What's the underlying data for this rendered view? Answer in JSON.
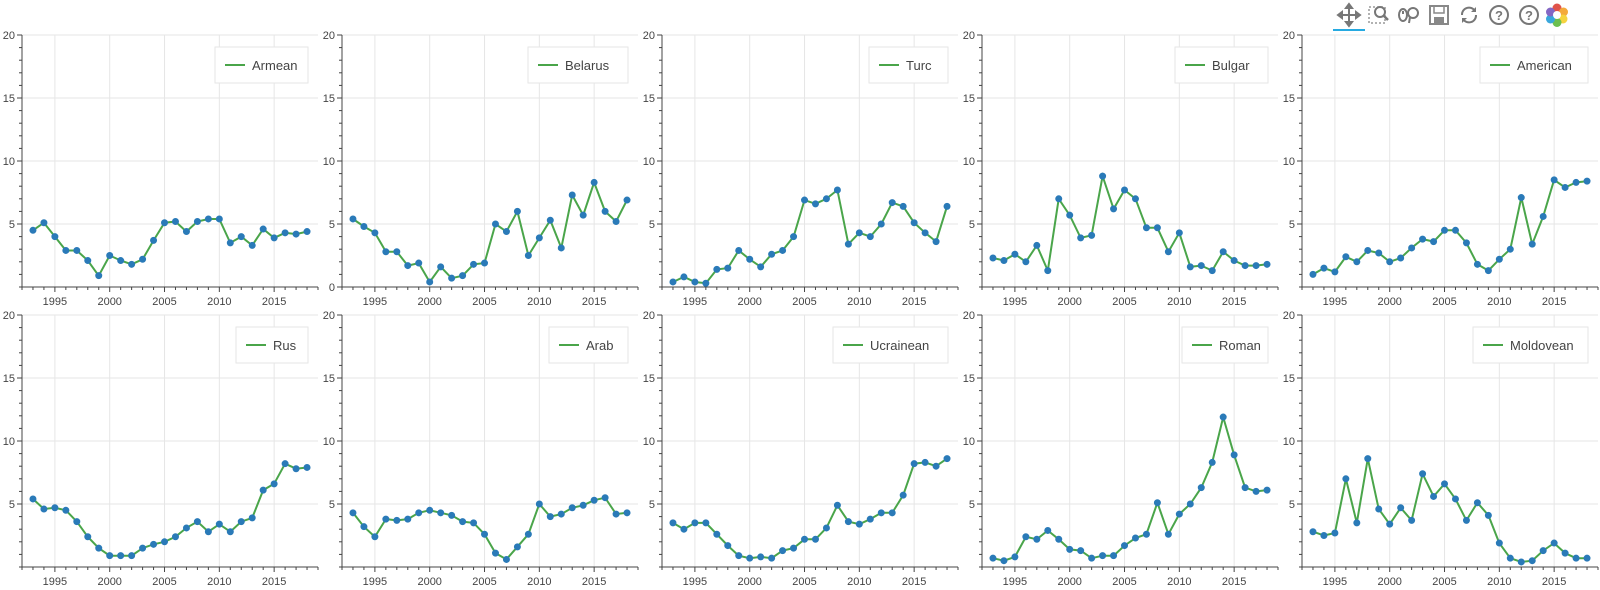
{
  "toolbar": {
    "tools": [
      {
        "name": "pan-tool-icon",
        "interactable": true,
        "active": true
      },
      {
        "name": "box-zoom-tool-icon",
        "interactable": true,
        "active": false
      },
      {
        "name": "wheel-zoom-tool-icon",
        "interactable": true,
        "active": false
      },
      {
        "name": "save-tool-icon",
        "interactable": true,
        "active": false
      },
      {
        "name": "reset-tool-icon",
        "interactable": true,
        "active": false
      },
      {
        "name": "hover-help-icon",
        "interactable": true,
        "active": false
      },
      {
        "name": "help-icon",
        "interactable": true,
        "active": false
      },
      {
        "name": "bokeh-logo-icon",
        "interactable": false,
        "active": false
      }
    ]
  },
  "colors": {
    "line": "#4aa54a",
    "marker": "#2a7ab8",
    "grid": "#e6e6e6",
    "axis": "#444444",
    "tick_text": "#444444",
    "legend_border": "#e6e6e6"
  },
  "chart_data": [
    {
      "type": "line",
      "legend": "Armean",
      "xlim": [
        1992,
        2019
      ],
      "ylim": [
        0,
        20
      ],
      "xticks": [
        1995,
        2000,
        2005,
        2010,
        2015
      ],
      "yticks": [
        5,
        10,
        15,
        20
      ],
      "grid": true,
      "legend_position": "top-right",
      "x": [
        1993,
        1994,
        1995,
        1996,
        1997,
        1998,
        1999,
        2000,
        2001,
        2002,
        2003,
        2004,
        2005,
        2006,
        2007,
        2008,
        2009,
        2010,
        2011,
        2012,
        2013,
        2014,
        2015,
        2016,
        2017,
        2018
      ],
      "y": [
        4.5,
        5.1,
        4.0,
        2.9,
        2.9,
        2.1,
        0.9,
        2.5,
        2.1,
        1.8,
        2.2,
        3.7,
        5.1,
        5.2,
        4.4,
        5.2,
        5.4,
        5.4,
        3.5,
        4.0,
        3.3,
        4.6,
        3.9,
        4.3,
        4.2,
        4.4
      ]
    },
    {
      "type": "line",
      "legend": "Belarus",
      "xlim": [
        1992,
        2019
      ],
      "ylim": [
        0,
        20
      ],
      "xticks": [
        1995,
        2000,
        2005,
        2010,
        2015
      ],
      "yticks": [
        0,
        5,
        10,
        15,
        20
      ],
      "grid": true,
      "legend_position": "top-right",
      "x": [
        1993,
        1994,
        1995,
        1996,
        1997,
        1998,
        1999,
        2000,
        2001,
        2002,
        2003,
        2004,
        2005,
        2006,
        2007,
        2008,
        2009,
        2010,
        2011,
        2012,
        2013,
        2014,
        2015,
        2016,
        2017,
        2018
      ],
      "y": [
        5.4,
        4.8,
        4.3,
        2.8,
        2.8,
        1.7,
        1.9,
        0.4,
        1.6,
        0.7,
        0.9,
        1.8,
        1.9,
        5.0,
        4.4,
        6.0,
        2.5,
        3.9,
        5.3,
        3.1,
        7.3,
        5.7,
        8.3,
        6.0,
        5.2,
        6.9
      ]
    },
    {
      "type": "line",
      "legend": "Turc",
      "xlim": [
        1992,
        2019
      ],
      "ylim": [
        0,
        20
      ],
      "xticks": [
        1995,
        2000,
        2005,
        2010,
        2015
      ],
      "yticks": [
        5,
        10,
        15,
        20
      ],
      "grid": true,
      "legend_position": "top-right",
      "x": [
        1993,
        1994,
        1995,
        1996,
        1997,
        1998,
        1999,
        2000,
        2001,
        2002,
        2003,
        2004,
        2005,
        2006,
        2007,
        2008,
        2009,
        2010,
        2011,
        2012,
        2013,
        2014,
        2015,
        2016,
        2017,
        2018
      ],
      "y": [
        0.4,
        0.8,
        0.4,
        0.3,
        1.4,
        1.5,
        2.9,
        2.2,
        1.6,
        2.6,
        2.9,
        4.0,
        6.9,
        6.6,
        7.0,
        7.7,
        3.4,
        4.3,
        4.0,
        5.0,
        6.7,
        6.4,
        5.1,
        4.3,
        3.6,
        6.4
      ]
    },
    {
      "type": "line",
      "legend": "Bulgar",
      "xlim": [
        1992,
        2019
      ],
      "ylim": [
        0,
        20
      ],
      "xticks": [
        1995,
        2000,
        2005,
        2010,
        2015
      ],
      "yticks": [
        5,
        10,
        15,
        20
      ],
      "grid": true,
      "legend_position": "top-right",
      "x": [
        1993,
        1994,
        1995,
        1996,
        1997,
        1998,
        1999,
        2000,
        2001,
        2002,
        2003,
        2004,
        2005,
        2006,
        2007,
        2008,
        2009,
        2010,
        2011,
        2012,
        2013,
        2014,
        2015,
        2016,
        2017,
        2018
      ],
      "y": [
        2.3,
        2.1,
        2.6,
        2.0,
        3.3,
        1.3,
        7.0,
        5.7,
        3.9,
        4.1,
        8.8,
        6.2,
        7.7,
        7.0,
        4.7,
        4.7,
        2.8,
        4.3,
        1.6,
        1.7,
        1.3,
        2.8,
        2.1,
        1.7,
        1.7,
        1.8
      ]
    },
    {
      "type": "line",
      "legend": "American",
      "xlim": [
        1992,
        2019
      ],
      "ylim": [
        0,
        20
      ],
      "xticks": [
        1995,
        2000,
        2005,
        2010,
        2015
      ],
      "yticks": [
        5,
        10,
        15,
        20
      ],
      "grid": true,
      "legend_position": "top-right",
      "x": [
        1993,
        1994,
        1995,
        1996,
        1997,
        1998,
        1999,
        2000,
        2001,
        2002,
        2003,
        2004,
        2005,
        2006,
        2007,
        2008,
        2009,
        2010,
        2011,
        2012,
        2013,
        2014,
        2015,
        2016,
        2017,
        2018
      ],
      "y": [
        1.0,
        1.5,
        1.2,
        2.4,
        2.0,
        2.9,
        2.7,
        2.0,
        2.3,
        3.1,
        3.8,
        3.6,
        4.5,
        4.5,
        3.5,
        1.8,
        1.3,
        2.2,
        3.0,
        7.1,
        3.4,
        5.6,
        8.5,
        7.9,
        8.3,
        8.4
      ]
    },
    {
      "type": "line",
      "legend": "Rus",
      "xlim": [
        1992,
        2019
      ],
      "ylim": [
        0,
        20
      ],
      "xticks": [
        1995,
        2000,
        2005,
        2010,
        2015
      ],
      "yticks": [
        5,
        10,
        15,
        20
      ],
      "grid": true,
      "legend_position": "top-right",
      "x": [
        1993,
        1994,
        1995,
        1996,
        1997,
        1998,
        1999,
        2000,
        2001,
        2002,
        2003,
        2004,
        2005,
        2006,
        2007,
        2008,
        2009,
        2010,
        2011,
        2012,
        2013,
        2014,
        2015,
        2016,
        2017,
        2018
      ],
      "y": [
        5.4,
        4.6,
        4.7,
        4.5,
        3.6,
        2.4,
        1.5,
        0.9,
        0.9,
        0.9,
        1.5,
        1.8,
        2.0,
        2.4,
        3.1,
        3.6,
        2.8,
        3.4,
        2.8,
        3.6,
        3.9,
        6.1,
        6.6,
        8.2,
        7.8,
        7.9
      ]
    },
    {
      "type": "line",
      "legend": "Arab",
      "xlim": [
        1992,
        2019
      ],
      "ylim": [
        0,
        20
      ],
      "xticks": [
        1995,
        2000,
        2005,
        2010,
        2015
      ],
      "yticks": [
        5,
        10,
        15,
        20
      ],
      "grid": true,
      "legend_position": "top-right",
      "x": [
        1993,
        1994,
        1995,
        1996,
        1997,
        1998,
        1999,
        2000,
        2001,
        2002,
        2003,
        2004,
        2005,
        2006,
        2007,
        2008,
        2009,
        2010,
        2011,
        2012,
        2013,
        2014,
        2015,
        2016,
        2017,
        2018
      ],
      "y": [
        4.3,
        3.2,
        2.4,
        3.8,
        3.7,
        3.8,
        4.3,
        4.5,
        4.3,
        4.1,
        3.6,
        3.5,
        2.6,
        1.1,
        0.6,
        1.6,
        2.6,
        5.0,
        4.0,
        4.2,
        4.7,
        4.9,
        5.3,
        5.5,
        4.2,
        4.3
      ]
    },
    {
      "type": "line",
      "legend": "Ucrainean",
      "xlim": [
        1992,
        2019
      ],
      "ylim": [
        0,
        20
      ],
      "xticks": [
        1995,
        2000,
        2005,
        2010,
        2015
      ],
      "yticks": [
        5,
        10,
        15,
        20
      ],
      "grid": true,
      "legend_position": "top-right",
      "x": [
        1993,
        1994,
        1995,
        1996,
        1997,
        1998,
        1999,
        2000,
        2001,
        2002,
        2003,
        2004,
        2005,
        2006,
        2007,
        2008,
        2009,
        2010,
        2011,
        2012,
        2013,
        2014,
        2015,
        2016,
        2017,
        2018
      ],
      "y": [
        3.5,
        3.0,
        3.5,
        3.5,
        2.6,
        1.7,
        0.9,
        0.7,
        0.8,
        0.7,
        1.3,
        1.5,
        2.2,
        2.2,
        3.1,
        4.9,
        3.6,
        3.4,
        3.8,
        4.3,
        4.3,
        5.7,
        8.2,
        8.3,
        8.0,
        8.6
      ]
    },
    {
      "type": "line",
      "legend": "Roman",
      "xlim": [
        1992,
        2019
      ],
      "ylim": [
        0,
        20
      ],
      "xticks": [
        1995,
        2000,
        2005,
        2010,
        2015
      ],
      "yticks": [
        5,
        10,
        15,
        20
      ],
      "grid": true,
      "legend_position": "top-right",
      "x": [
        1993,
        1994,
        1995,
        1996,
        1997,
        1998,
        1999,
        2000,
        2001,
        2002,
        2003,
        2004,
        2005,
        2006,
        2007,
        2008,
        2009,
        2010,
        2011,
        2012,
        2013,
        2014,
        2015,
        2016,
        2017,
        2018
      ],
      "y": [
        0.7,
        0.5,
        0.8,
        2.4,
        2.2,
        2.9,
        2.2,
        1.4,
        1.3,
        0.7,
        0.9,
        0.9,
        1.7,
        2.3,
        2.6,
        5.1,
        2.6,
        4.2,
        5.0,
        6.3,
        8.3,
        11.9,
        8.9,
        6.3,
        6.0,
        6.1
      ]
    },
    {
      "type": "line",
      "legend": "Moldovean",
      "xlim": [
        1992,
        2019
      ],
      "ylim": [
        0,
        20
      ],
      "xticks": [
        1995,
        2000,
        2005,
        2010,
        2015
      ],
      "yticks": [
        5,
        10,
        15,
        20
      ],
      "grid": true,
      "legend_position": "top-right",
      "x": [
        1993,
        1994,
        1995,
        1996,
        1997,
        1998,
        1999,
        2000,
        2001,
        2002,
        2003,
        2004,
        2005,
        2006,
        2007,
        2008,
        2009,
        2010,
        2011,
        2012,
        2013,
        2014,
        2015,
        2016,
        2017,
        2018
      ],
      "y": [
        2.8,
        2.5,
        2.7,
        7.0,
        3.5,
        8.6,
        4.6,
        3.4,
        4.7,
        3.7,
        7.4,
        5.6,
        6.6,
        5.4,
        3.7,
        5.1,
        4.1,
        1.9,
        0.7,
        0.4,
        0.5,
        1.3,
        1.9,
        1.1,
        0.7,
        0.7
      ]
    }
  ]
}
